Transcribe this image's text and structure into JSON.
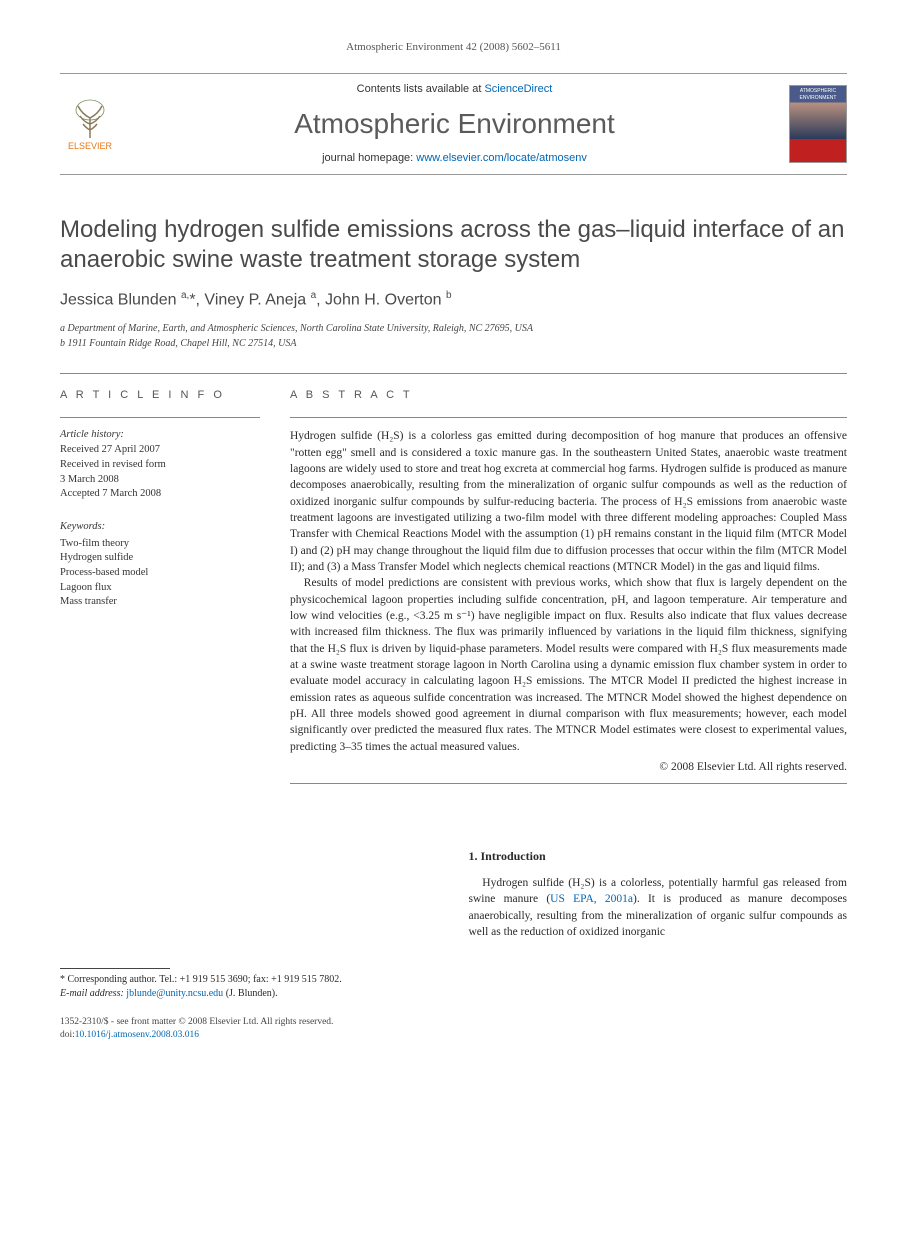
{
  "running_head": "Atmospheric Environment 42 (2008) 5602–5611",
  "masthead": {
    "contents_prefix": "Contents lists available at ",
    "contents_link": "ScienceDirect",
    "journal": "Atmospheric Environment",
    "homepage_prefix": "journal homepage: ",
    "homepage_link": "www.elsevier.com/locate/atmosenv",
    "publisher": "ELSEVIER",
    "cover_label": "ATMOSPHERIC ENVIRONMENT"
  },
  "article": {
    "title": "Modeling hydrogen sulfide emissions across the gas–liquid interface of an anaerobic swine waste treatment storage system",
    "authors_html": "Jessica Blunden <sup>a,</sup>*, Viney P. Aneja <sup>a</sup>, John H. Overton <sup>b</sup>",
    "affiliations": {
      "a": "a Department of Marine, Earth, and Atmospheric Sciences, North Carolina State University, Raleigh, NC 27695, USA",
      "b": "b 1911 Fountain Ridge Road, Chapel Hill, NC 27514, USA"
    }
  },
  "article_info": {
    "heading": "A R T I C L E   I N F O",
    "history_label": "Article history:",
    "history": [
      "Received 27 April 2007",
      "Received in revised form",
      "3 March 2008",
      "Accepted 7 March 2008"
    ],
    "keywords_label": "Keywords:",
    "keywords": [
      "Two-film theory",
      "Hydrogen sulfide",
      "Process-based model",
      "Lagoon flux",
      "Mass transfer"
    ]
  },
  "abstract": {
    "heading": "A B S T R A C T",
    "p1": "Hydrogen sulfide (H₂S) is a colorless gas emitted during decomposition of hog manure that produces an offensive \"rotten egg\" smell and is considered a toxic manure gas. In the southeastern United States, anaerobic waste treatment lagoons are widely used to store and treat hog excreta at commercial hog farms. Hydrogen sulfide is produced as manure decomposes anaerobically, resulting from the mineralization of organic sulfur compounds as well as the reduction of oxidized inorganic sulfur compounds by sulfur-reducing bacteria. The process of H₂S emissions from anaerobic waste treatment lagoons are investigated utilizing a two-film model with three different modeling approaches: Coupled Mass Transfer with Chemical Reactions Model with the assumption (1) pH remains constant in the liquid film (MTCR Model I) and (2) pH may change throughout the liquid film due to diffusion processes that occur within the film (MTCR Model II); and (3) a Mass Transfer Model which neglects chemical reactions (MTNCR Model) in the gas and liquid films.",
    "p2": "Results of model predictions are consistent with previous works, which show that flux is largely dependent on the physicochemical lagoon properties including sulfide concentration, pH, and lagoon temperature. Air temperature and low wind velocities (e.g., <3.25 m s⁻¹) have negligible impact on flux. Results also indicate that flux values decrease with increased film thickness. The flux was primarily influenced by variations in the liquid film thickness, signifying that the H₂S flux is driven by liquid-phase parameters. Model results were compared with H₂S flux measurements made at a swine waste treatment storage lagoon in North Carolina using a dynamic emission flux chamber system in order to evaluate model accuracy in calculating lagoon H₂S emissions. The MTCR Model II predicted the highest increase in emission rates as aqueous sulfide concentration was increased. The MTNCR Model showed the highest dependence on pH. All three models showed good agreement in diurnal comparison with flux measurements; however, each model significantly over predicted the measured flux rates. The MTNCR Model estimates were closest to experimental values, predicting 3–35 times the actual measured values.",
    "copyright": "© 2008 Elsevier Ltd. All rights reserved."
  },
  "body": {
    "section_number": "1.",
    "section_title": "Introduction",
    "p1_pre": "Hydrogen sulfide (H₂S) is a colorless, potentially harmful gas released from swine manure (",
    "p1_link": "US EPA, 2001a",
    "p1_post": "). It is produced as manure decomposes anaerobically, resulting from the mineralization of organic sulfur compounds as well as the reduction of oxidized inorganic"
  },
  "footnote": {
    "corr": "* Corresponding author. Tel.: +1 919 515 3690; fax: +1 919 515 7802.",
    "email_label": "E-mail address:",
    "email": "jblunde@unity.ncsu.edu",
    "email_name": "(J. Blunden)."
  },
  "footer": {
    "line1": "1352-2310/$ - see front matter © 2008 Elsevier Ltd. All rights reserved.",
    "doi_label": "doi:",
    "doi": "10.1016/j.atmosenv.2008.03.016"
  },
  "colors": {
    "link": "#0066b3",
    "logo_orange": "#e67817",
    "text_gray": "#4a4a4a"
  }
}
